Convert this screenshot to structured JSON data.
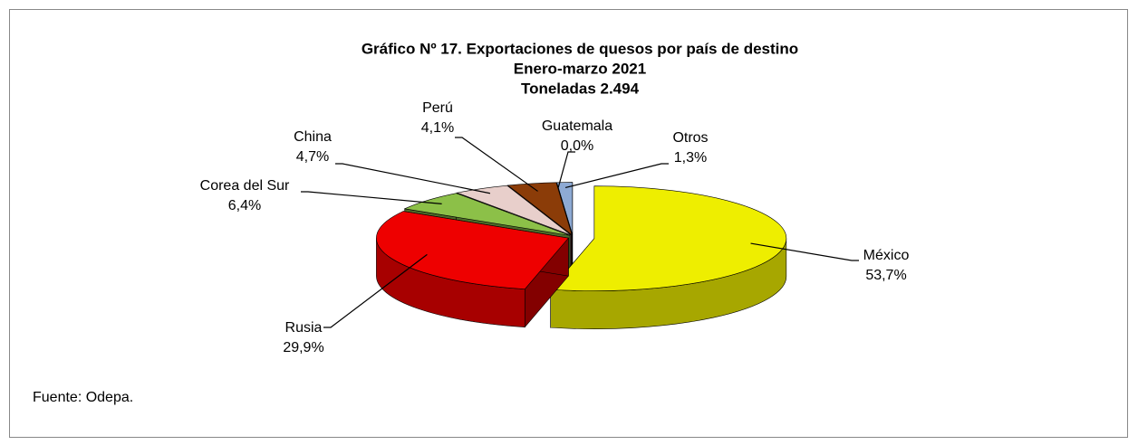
{
  "chart_data": {
    "type": "pie3d",
    "title": [
      "Gráfico Nº 17. Exportaciones de quesos por país de destino",
      "Enero-marzo 2021",
      "Toneladas 2.494"
    ],
    "categories": [
      "México",
      "Rusia",
      "Corea del Sur",
      "China",
      "Perú",
      "Guatemala",
      "Otros"
    ],
    "values": [
      53.7,
      29.9,
      6.4,
      4.7,
      4.1,
      0.0,
      1.3
    ],
    "value_labels": [
      "53,7%",
      "29,9%",
      "6,4%",
      "4,7%",
      "4,1%",
      "0,0%",
      "1,3%"
    ],
    "colors": [
      "#eeee00",
      "#ee0000",
      "#8cc048",
      "#e8cfcb",
      "#8b3c08",
      "#2f4a1c",
      "#8eaad4"
    ],
    "source": "Fuente: Odepa."
  }
}
